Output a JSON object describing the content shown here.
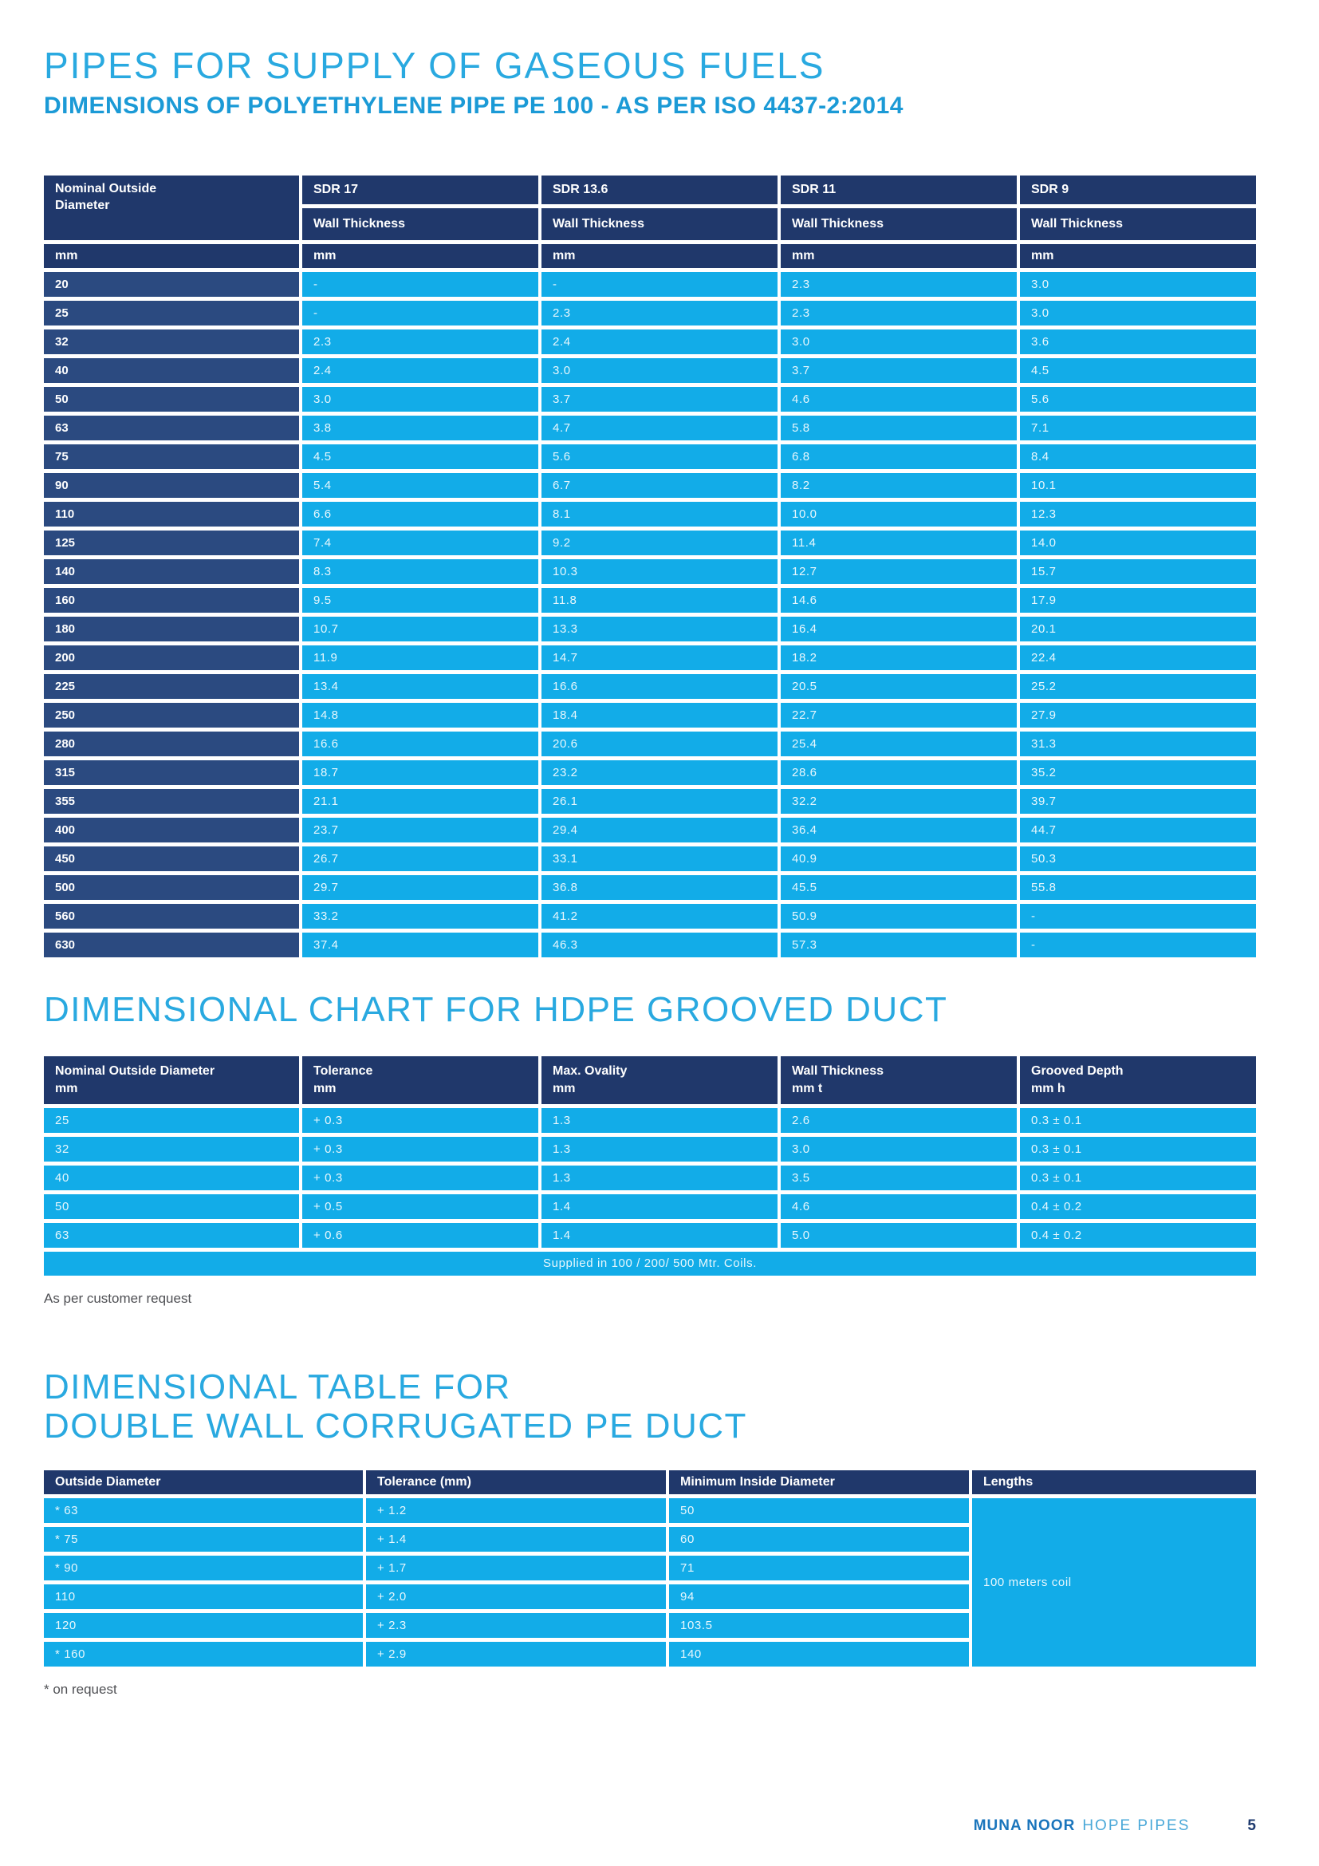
{
  "page": {
    "title": "PIPES FOR SUPPLY OF GASEOUS FUELS",
    "subtitle": "DIMENSIONS OF POLYETHYLENE PIPE PE 100 - AS PER ISO 4437-2:2014"
  },
  "colors": {
    "title_blue": "#29a9e0",
    "subtitle_blue": "#1b9ad6",
    "header_navy": "#20386b",
    "row_label_navy": "#2b4a80",
    "cell_blue": "#12ace8",
    "footer_brand_blue": "#1a75bc",
    "footer_light_blue": "#4aa8d8",
    "page_number_navy": "#1e3a6e"
  },
  "gas_table": {
    "corner_header": "Nominal Outside Diameter",
    "sdr_labels": [
      "SDR 17",
      "SDR 13.6",
      "SDR 11",
      "SDR 9"
    ],
    "sub_header": "Wall Thickness",
    "unit": "mm",
    "rows": [
      {
        "diameter": "20",
        "values": [
          "-",
          "-",
          "2.3",
          "3.0"
        ]
      },
      {
        "diameter": "25",
        "values": [
          "-",
          "2.3",
          "2.3",
          "3.0"
        ]
      },
      {
        "diameter": "32",
        "values": [
          "2.3",
          "2.4",
          "3.0",
          "3.6"
        ]
      },
      {
        "diameter": "40",
        "values": [
          "2.4",
          "3.0",
          "3.7",
          "4.5"
        ]
      },
      {
        "diameter": "50",
        "values": [
          "3.0",
          "3.7",
          "4.6",
          "5.6"
        ]
      },
      {
        "diameter": "63",
        "values": [
          "3.8",
          "4.7",
          "5.8",
          "7.1"
        ]
      },
      {
        "diameter": "75",
        "values": [
          "4.5",
          "5.6",
          "6.8",
          "8.4"
        ]
      },
      {
        "diameter": "90",
        "values": [
          "5.4",
          "6.7",
          "8.2",
          "10.1"
        ]
      },
      {
        "diameter": "110",
        "values": [
          "6.6",
          "8.1",
          "10.0",
          "12.3"
        ]
      },
      {
        "diameter": "125",
        "values": [
          "7.4",
          "9.2",
          "11.4",
          "14.0"
        ]
      },
      {
        "diameter": "140",
        "values": [
          "8.3",
          "10.3",
          "12.7",
          "15.7"
        ]
      },
      {
        "diameter": "160",
        "values": [
          "9.5",
          "11.8",
          "14.6",
          "17.9"
        ]
      },
      {
        "diameter": "180",
        "values": [
          "10.7",
          "13.3",
          "16.4",
          "20.1"
        ]
      },
      {
        "diameter": "200",
        "values": [
          "11.9",
          "14.7",
          "18.2",
          "22.4"
        ]
      },
      {
        "diameter": "225",
        "values": [
          "13.4",
          "16.6",
          "20.5",
          "25.2"
        ]
      },
      {
        "diameter": "250",
        "values": [
          "14.8",
          "18.4",
          "22.7",
          "27.9"
        ]
      },
      {
        "diameter": "280",
        "values": [
          "16.6",
          "20.6",
          "25.4",
          "31.3"
        ]
      },
      {
        "diameter": "315",
        "values": [
          "18.7",
          "23.2",
          "28.6",
          "35.2"
        ]
      },
      {
        "diameter": "355",
        "values": [
          "21.1",
          "26.1",
          "32.2",
          "39.7"
        ]
      },
      {
        "diameter": "400",
        "values": [
          "23.7",
          "29.4",
          "36.4",
          "44.7"
        ]
      },
      {
        "diameter": "450",
        "values": [
          "26.7",
          "33.1",
          "40.9",
          "50.3"
        ]
      },
      {
        "diameter": "500",
        "values": [
          "29.7",
          "36.8",
          "45.5",
          "55.8"
        ]
      },
      {
        "diameter": "560",
        "values": [
          "33.2",
          "41.2",
          "50.9",
          "-"
        ]
      },
      {
        "diameter": "630",
        "values": [
          "37.4",
          "46.3",
          "57.3",
          "-"
        ]
      }
    ]
  },
  "grooved_section": {
    "title": "DIMENSIONAL CHART FOR HDPE GROOVED DUCT",
    "columns": [
      {
        "label": "Nominal Outside Diameter",
        "unit": "mm"
      },
      {
        "label": "Tolerance",
        "unit": "mm"
      },
      {
        "label": "Max. Ovality",
        "unit": "mm"
      },
      {
        "label": "Wall Thickness",
        "unit": "mm t"
      },
      {
        "label": "Grooved Depth",
        "unit": "mm h"
      }
    ],
    "rows": [
      [
        "25",
        "+ 0.3",
        "1.3",
        "2.6",
        "0.3 ± 0.1"
      ],
      [
        "32",
        "+ 0.3",
        "1.3",
        "3.0",
        "0.3 ± 0.1"
      ],
      [
        "40",
        "+ 0.3",
        "1.3",
        "3.5",
        "0.3 ± 0.1"
      ],
      [
        "50",
        "+ 0.5",
        "1.4",
        "4.6",
        "0.4 ± 0.2"
      ],
      [
        "63",
        "+ 0.6",
        "1.4",
        "5.0",
        "0.4 ± 0.2"
      ]
    ],
    "merged_row": "Supplied in 100 / 200/ 500 Mtr. Coils.",
    "note": "As per customer request"
  },
  "corrugated_section": {
    "title_line1": "DIMENSIONAL TABLE FOR",
    "title_line2": "DOUBLE WALL CORRUGATED PE DUCT",
    "columns": [
      "Outside Diameter",
      "Tolerance (mm)",
      "Minimum Inside Diameter",
      "Lengths"
    ],
    "rows": [
      [
        "* 63",
        "+ 1.2",
        "50"
      ],
      [
        "* 75",
        "+ 1.4",
        "60"
      ],
      [
        "* 90",
        "+ 1.7",
        "71"
      ],
      [
        "110",
        "+ 2.0",
        "94"
      ],
      [
        "120",
        "+ 2.3",
        "103.5"
      ],
      [
        "* 160",
        "+ 2.9",
        "140"
      ]
    ],
    "lengths_value": "100 meters coil",
    "note": "* on request"
  },
  "footer": {
    "brand_bold": "MUNA NOOR",
    "brand_light": "HOPE PIPES",
    "page_number": "5"
  }
}
